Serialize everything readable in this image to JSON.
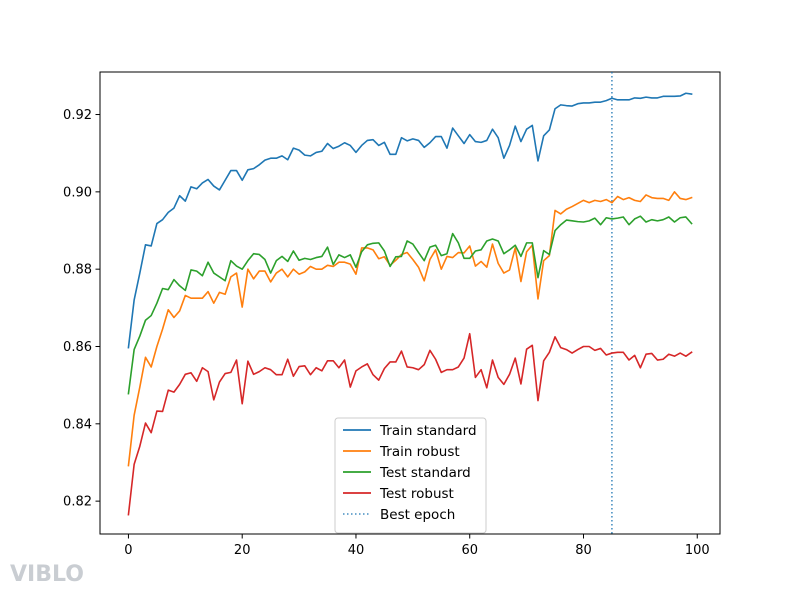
{
  "chart_data": {
    "type": "line",
    "title": "",
    "xlabel": "",
    "ylabel": "",
    "xlim": [
      -5,
      104
    ],
    "ylim": [
      0.8115,
      0.931
    ],
    "xticks": [
      0,
      20,
      40,
      60,
      80,
      100
    ],
    "yticks": [
      0.82,
      0.84,
      0.86,
      0.88,
      0.9,
      0.92
    ],
    "ytick_labels": [
      "0.82",
      "0.84",
      "0.86",
      "0.88",
      "0.90",
      "0.92"
    ],
    "grid": false,
    "legend": {
      "placement": "lower-center"
    },
    "x": [
      0,
      1,
      2,
      3,
      4,
      5,
      6,
      7,
      8,
      9,
      10,
      11,
      12,
      13,
      14,
      15,
      16,
      17,
      18,
      19,
      20,
      21,
      22,
      23,
      24,
      25,
      26,
      27,
      28,
      29,
      30,
      31,
      32,
      33,
      34,
      35,
      36,
      37,
      38,
      39,
      40,
      41,
      42,
      43,
      44,
      45,
      46,
      47,
      48,
      49,
      50,
      51,
      52,
      53,
      54,
      55,
      56,
      57,
      58,
      59,
      60,
      61,
      62,
      63,
      64,
      65,
      66,
      67,
      68,
      69,
      70,
      71,
      72,
      73,
      74,
      75,
      76,
      77,
      78,
      79,
      80,
      81,
      82,
      83,
      84,
      85,
      86,
      87,
      88,
      89,
      90,
      91,
      92,
      93,
      94,
      95,
      96,
      97,
      98,
      99
    ],
    "series": [
      {
        "name": "Train standard",
        "color": "#1f77b4",
        "values": [
          0.8597,
          0.872,
          0.879,
          0.8863,
          0.886,
          0.8918,
          0.8928,
          0.8947,
          0.8958,
          0.899,
          0.8976,
          0.9013,
          0.9008,
          0.9023,
          0.9032,
          0.9015,
          0.9005,
          0.903,
          0.9055,
          0.9055,
          0.903,
          0.9057,
          0.906,
          0.907,
          0.9082,
          0.9087,
          0.9087,
          0.9093,
          0.9083,
          0.9113,
          0.9108,
          0.9095,
          0.9093,
          0.9102,
          0.9105,
          0.9125,
          0.9112,
          0.9118,
          0.9127,
          0.912,
          0.9102,
          0.912,
          0.9133,
          0.9135,
          0.912,
          0.9128,
          0.9097,
          0.9097,
          0.914,
          0.9132,
          0.9137,
          0.9133,
          0.9115,
          0.9127,
          0.9143,
          0.9143,
          0.9113,
          0.9165,
          0.9145,
          0.9125,
          0.9148,
          0.913,
          0.9128,
          0.9133,
          0.9162,
          0.914,
          0.9087,
          0.912,
          0.917,
          0.913,
          0.9162,
          0.9172,
          0.908,
          0.9145,
          0.916,
          0.9215,
          0.9225,
          0.9223,
          0.9222,
          0.9228,
          0.923,
          0.923,
          0.9232,
          0.9232,
          0.9236,
          0.9242,
          0.9238,
          0.9238,
          0.9238,
          0.9243,
          0.9242,
          0.9245,
          0.9243,
          0.9243,
          0.9247,
          0.9247,
          0.9247,
          0.9248,
          0.9255,
          0.9253
        ]
      },
      {
        "name": "Train robust",
        "color": "#ff7f0e",
        "values": [
          0.8292,
          0.8422,
          0.8495,
          0.8572,
          0.8547,
          0.86,
          0.8645,
          0.8695,
          0.8675,
          0.8692,
          0.8732,
          0.8725,
          0.8725,
          0.8725,
          0.8742,
          0.8712,
          0.874,
          0.8735,
          0.878,
          0.879,
          0.8702,
          0.88,
          0.8775,
          0.8795,
          0.8795,
          0.8767,
          0.879,
          0.88,
          0.878,
          0.88,
          0.8787,
          0.8793,
          0.8807,
          0.88,
          0.88,
          0.881,
          0.8807,
          0.8818,
          0.8818,
          0.8813,
          0.8787,
          0.8855,
          0.8855,
          0.885,
          0.8827,
          0.8832,
          0.881,
          0.8823,
          0.8838,
          0.8843,
          0.8825,
          0.8805,
          0.877,
          0.8825,
          0.885,
          0.88,
          0.8833,
          0.883,
          0.8843,
          0.8842,
          0.886,
          0.8808,
          0.882,
          0.8805,
          0.8865,
          0.8815,
          0.879,
          0.8798,
          0.8855,
          0.8768,
          0.8845,
          0.8862,
          0.8723,
          0.8822,
          0.8835,
          0.8952,
          0.8943,
          0.8955,
          0.8962,
          0.897,
          0.8978,
          0.8972,
          0.8978,
          0.8975,
          0.898,
          0.8972,
          0.8988,
          0.898,
          0.8985,
          0.8978,
          0.8975,
          0.8992,
          0.8985,
          0.8983,
          0.8983,
          0.8978,
          0.9,
          0.8983,
          0.898,
          0.8985
        ]
      },
      {
        "name": "Test standard",
        "color": "#2ca02c",
        "values": [
          0.8478,
          0.8592,
          0.8627,
          0.8668,
          0.868,
          0.8712,
          0.875,
          0.8747,
          0.8773,
          0.8757,
          0.8745,
          0.8798,
          0.8795,
          0.8783,
          0.8818,
          0.879,
          0.878,
          0.877,
          0.8822,
          0.8808,
          0.88,
          0.8822,
          0.884,
          0.8838,
          0.8825,
          0.879,
          0.8822,
          0.8833,
          0.882,
          0.8847,
          0.8823,
          0.8828,
          0.8825,
          0.883,
          0.8833,
          0.8857,
          0.8812,
          0.8837,
          0.883,
          0.8837,
          0.8805,
          0.8845,
          0.8863,
          0.8867,
          0.8868,
          0.8847,
          0.8807,
          0.8832,
          0.8833,
          0.8873,
          0.8865,
          0.8843,
          0.8822,
          0.8857,
          0.8862,
          0.8835,
          0.884,
          0.8892,
          0.8868,
          0.8828,
          0.8828,
          0.8847,
          0.885,
          0.8873,
          0.8878,
          0.8873,
          0.884,
          0.885,
          0.8862,
          0.8833,
          0.8868,
          0.8868,
          0.8778,
          0.8848,
          0.8838,
          0.89,
          0.8915,
          0.8927,
          0.8925,
          0.8923,
          0.8922,
          0.8925,
          0.8932,
          0.8915,
          0.8933,
          0.893,
          0.8932,
          0.8935,
          0.8915,
          0.893,
          0.8937,
          0.8922,
          0.8928,
          0.8925,
          0.8928,
          0.8935,
          0.8922,
          0.8933,
          0.8935,
          0.8918
        ]
      },
      {
        "name": "Test robust",
        "color": "#d62728",
        "values": [
          0.8165,
          0.8295,
          0.8342,
          0.8402,
          0.8377,
          0.8433,
          0.8432,
          0.8487,
          0.8482,
          0.8502,
          0.8528,
          0.8532,
          0.851,
          0.8545,
          0.8535,
          0.8462,
          0.8508,
          0.853,
          0.8533,
          0.8565,
          0.8452,
          0.8562,
          0.8528,
          0.8535,
          0.8545,
          0.854,
          0.8527,
          0.8527,
          0.8567,
          0.8523,
          0.8548,
          0.855,
          0.8527,
          0.8545,
          0.8537,
          0.8563,
          0.8563,
          0.8545,
          0.8565,
          0.8495,
          0.8537,
          0.8547,
          0.8555,
          0.8527,
          0.8513,
          0.8543,
          0.856,
          0.856,
          0.8588,
          0.8547,
          0.8545,
          0.854,
          0.8553,
          0.859,
          0.8567,
          0.8533,
          0.854,
          0.854,
          0.8547,
          0.857,
          0.8633,
          0.852,
          0.854,
          0.8493,
          0.8565,
          0.852,
          0.8502,
          0.8528,
          0.857,
          0.8503,
          0.8593,
          0.8603,
          0.846,
          0.8563,
          0.8585,
          0.8625,
          0.8597,
          0.8592,
          0.8583,
          0.8592,
          0.86,
          0.86,
          0.859,
          0.8595,
          0.8578,
          0.8583,
          0.8585,
          0.8585,
          0.8565,
          0.8577,
          0.8545,
          0.858,
          0.8582,
          0.8565,
          0.8567,
          0.858,
          0.8575,
          0.8583,
          0.8575,
          0.8585
        ]
      }
    ],
    "vlines": [
      {
        "name": "Best epoch",
        "x": 85,
        "color": "#1f77b4",
        "style": "dotted"
      }
    ]
  },
  "watermark": {
    "text": "VIBLO"
  }
}
